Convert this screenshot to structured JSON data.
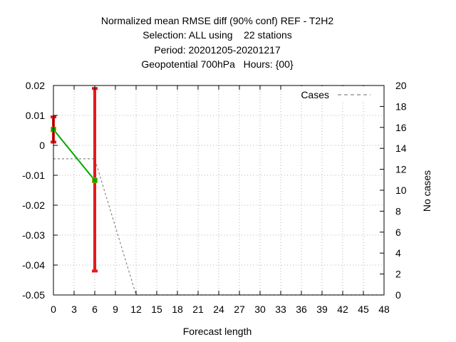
{
  "chart_data": {
    "type": "line",
    "title_lines": [
      "Normalized mean RMSE diff (90% conf) REF - T2H2",
      "Selection: ALL using    22 stations",
      "Period: 20201205-20201217",
      "Geopotential 700hPa   Hours: {00}"
    ],
    "xlabel": "Forecast length",
    "ylabel": "",
    "y2label": "No cases",
    "xlim": [
      0,
      48
    ],
    "ylim": [
      -0.05,
      0.02
    ],
    "y2lim": [
      0,
      20
    ],
    "x_ticks": [
      "0",
      "3",
      "6",
      "9",
      "12",
      "15",
      "18",
      "21",
      "24",
      "27",
      "30",
      "33",
      "36",
      "39",
      "42",
      "45",
      "48"
    ],
    "y_ticks": [
      "0.02",
      "0.01",
      "0",
      "-0.01",
      "-0.02",
      "-0.03",
      "-0.04",
      "-0.05"
    ],
    "y2_ticks": [
      "20",
      "18",
      "16",
      "14",
      "12",
      "10",
      "8",
      "6",
      "4",
      "2",
      "0"
    ],
    "grid": true,
    "legend_position": "top-right",
    "series": [
      {
        "name": "",
        "color": "#00aa00",
        "x": [
          0,
          6
        ],
        "y": [
          0.0053,
          -0.0117
        ],
        "errorbars": {
          "color": "#e31a1c",
          "low": [
            0.0011,
            -0.042
          ],
          "high": [
            0.0095,
            0.019
          ]
        }
      },
      {
        "name": "Cases",
        "axis": "y2",
        "color": "#888888",
        "dash": "dashed",
        "x": [
          0,
          3,
          6,
          12,
          48
        ],
        "y": [
          13,
          13,
          13,
          0,
          0
        ]
      }
    ]
  }
}
